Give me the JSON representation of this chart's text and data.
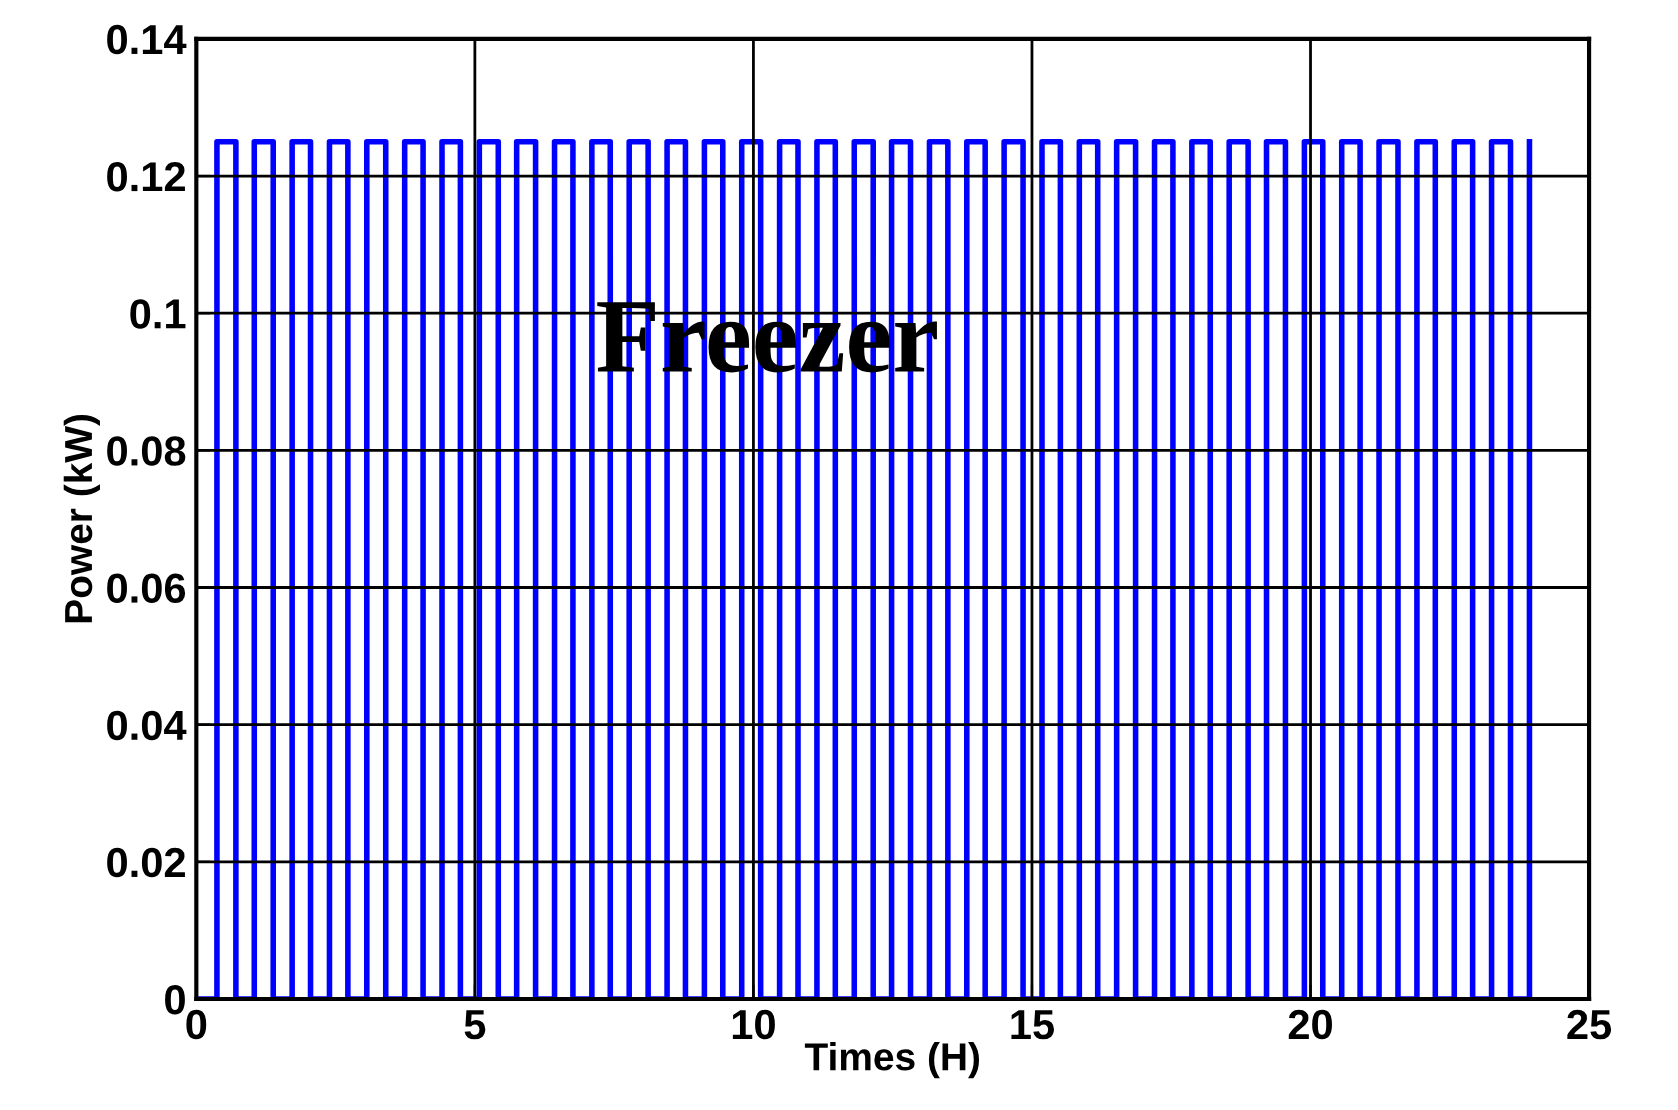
{
  "chart_data": {
    "type": "line",
    "xlabel": "Times (H)",
    "ylabel": "Power (kW)",
    "annotations": [
      "Freezer"
    ],
    "xlim": [
      0,
      25
    ],
    "xticks": [
      0,
      5,
      10,
      15,
      20,
      25
    ],
    "ylim": [
      0,
      0.14
    ],
    "yticks": [
      0,
      0.02,
      0.04,
      0.06,
      0.08,
      0.1,
      0.12,
      0.14
    ],
    "grid": true,
    "series": [
      {
        "color": "#0000ff",
        "x": [
          0,
          0.37,
          0.37,
          0.71,
          0.71,
          1.04,
          1.04,
          1.38,
          1.38,
          1.72,
          1.72,
          2.05,
          2.05,
          2.39,
          2.39,
          2.72,
          2.72,
          3.06,
          3.06,
          3.4,
          3.4,
          3.74,
          3.74,
          4.07,
          4.07,
          4.41,
          4.41,
          4.74,
          4.74,
          5.08,
          5.08,
          5.42,
          5.42,
          5.75,
          5.75,
          6.09,
          6.09,
          6.43,
          6.43,
          6.76,
          6.76,
          7.1,
          7.1,
          7.43,
          7.43,
          7.77,
          7.77,
          8.11,
          8.11,
          8.45,
          8.45,
          8.78,
          8.78,
          9.12,
          9.12,
          9.45,
          9.45,
          9.79,
          9.79,
          10.13,
          10.13,
          10.47,
          10.47,
          10.8,
          10.8,
          11.14,
          11.14,
          11.47,
          11.47,
          11.81,
          11.81,
          12.15,
          12.15,
          12.48,
          12.48,
          12.82,
          12.82,
          13.16,
          13.16,
          13.49,
          13.49,
          13.83,
          13.83,
          14.16,
          14.16,
          14.5,
          14.5,
          14.84,
          14.84,
          15.18,
          15.18,
          15.51,
          15.51,
          15.85,
          15.85,
          16.18,
          16.18,
          16.52,
          16.52,
          16.86,
          16.86,
          17.2,
          17.2,
          17.53,
          17.53,
          17.87,
          17.87,
          18.2,
          18.2,
          18.54,
          18.54,
          18.88,
          18.88,
          19.21,
          19.21,
          19.55,
          19.55,
          19.89,
          19.89,
          20.22,
          20.22,
          20.56,
          20.56,
          20.89,
          20.89,
          21.23,
          21.23,
          21.57,
          21.57,
          21.91,
          21.91,
          22.24,
          22.24,
          22.58,
          22.58,
          22.91,
          22.91,
          23.25,
          23.25,
          23.59,
          23.59,
          23.93,
          23.93
        ],
        "values": [
          0,
          0,
          0.125,
          0.125,
          0,
          0,
          0.125,
          0.125,
          0,
          0,
          0.125,
          0.125,
          0,
          0,
          0.125,
          0.125,
          0,
          0,
          0.125,
          0.125,
          0,
          0,
          0.125,
          0.125,
          0,
          0,
          0.125,
          0.125,
          0,
          0,
          0.125,
          0.125,
          0,
          0,
          0.125,
          0.125,
          0,
          0,
          0.125,
          0.125,
          0,
          0,
          0.125,
          0.125,
          0,
          0,
          0.125,
          0.125,
          0,
          0,
          0.125,
          0.125,
          0,
          0,
          0.125,
          0.125,
          0,
          0,
          0.125,
          0.125,
          0,
          0,
          0.125,
          0.125,
          0,
          0,
          0.125,
          0.125,
          0,
          0,
          0.125,
          0.125,
          0,
          0,
          0.125,
          0.125,
          0,
          0,
          0.125,
          0.125,
          0,
          0,
          0.125,
          0.125,
          0,
          0,
          0.125,
          0.125,
          0,
          0,
          0.125,
          0.125,
          0,
          0,
          0.125,
          0.125,
          0,
          0,
          0.125,
          0.125,
          0,
          0,
          0.125,
          0.125,
          0,
          0,
          0.125,
          0.125,
          0,
          0,
          0.125,
          0.125,
          0,
          0,
          0.125,
          0.125,
          0,
          0,
          0.125,
          0.125,
          0,
          0,
          0.125,
          0.125,
          0,
          0,
          0.125,
          0.125,
          0,
          0,
          0.125,
          0.125,
          0,
          0,
          0.125,
          0.125,
          0,
          0,
          0.125,
          0.125,
          0,
          0,
          0.125
        ]
      }
    ]
  }
}
